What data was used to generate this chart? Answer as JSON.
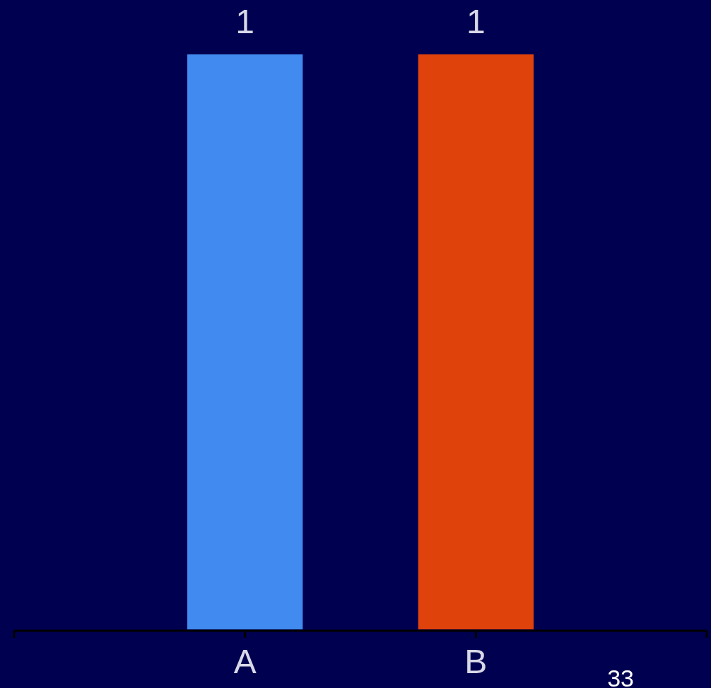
{
  "chart_data": {
    "type": "bar",
    "categories": [
      "A",
      "B"
    ],
    "values": [
      1,
      1
    ],
    "colors": [
      "#418bf0",
      "#e0420c"
    ],
    "data_labels": true,
    "annotations": [
      "33"
    ]
  }
}
